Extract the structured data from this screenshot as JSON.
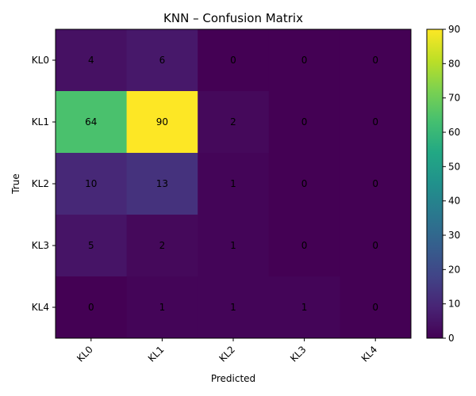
{
  "chart_data": {
    "type": "heatmap",
    "title": "KNN – Confusion Matrix",
    "xlabel": "Predicted",
    "ylabel": "True",
    "x_categories": [
      "KL0",
      "KL1",
      "KL2",
      "KL3",
      "KL4"
    ],
    "y_categories": [
      "KL0",
      "KL1",
      "KL2",
      "KL3",
      "KL4"
    ],
    "values": [
      [
        4,
        6,
        0,
        0,
        0
      ],
      [
        64,
        90,
        2,
        0,
        0
      ],
      [
        10,
        13,
        1,
        0,
        0
      ],
      [
        5,
        2,
        1,
        0,
        0
      ],
      [
        0,
        1,
        1,
        1,
        0
      ]
    ],
    "value_labels": [
      [
        "4",
        "6",
        "0",
        "0",
        "0"
      ],
      [
        "64",
        "90",
        "2",
        "0",
        "0"
      ],
      [
        "10",
        "13",
        "1",
        "0",
        "0"
      ],
      [
        "5",
        "2",
        "1",
        "0",
        "0"
      ],
      [
        "0",
        "1",
        "1",
        "1",
        "0"
      ]
    ],
    "colorbar": {
      "range": [
        0,
        90
      ],
      "ticks": [
        0,
        10,
        20,
        30,
        40,
        50,
        60,
        70,
        80,
        90
      ],
      "tick_labels": [
        "0",
        "10",
        "20",
        "30",
        "40",
        "50",
        "60",
        "70",
        "80",
        "90"
      ],
      "colormap": "viridis"
    },
    "grid": false,
    "x_tick_rotation": "45deg"
  }
}
